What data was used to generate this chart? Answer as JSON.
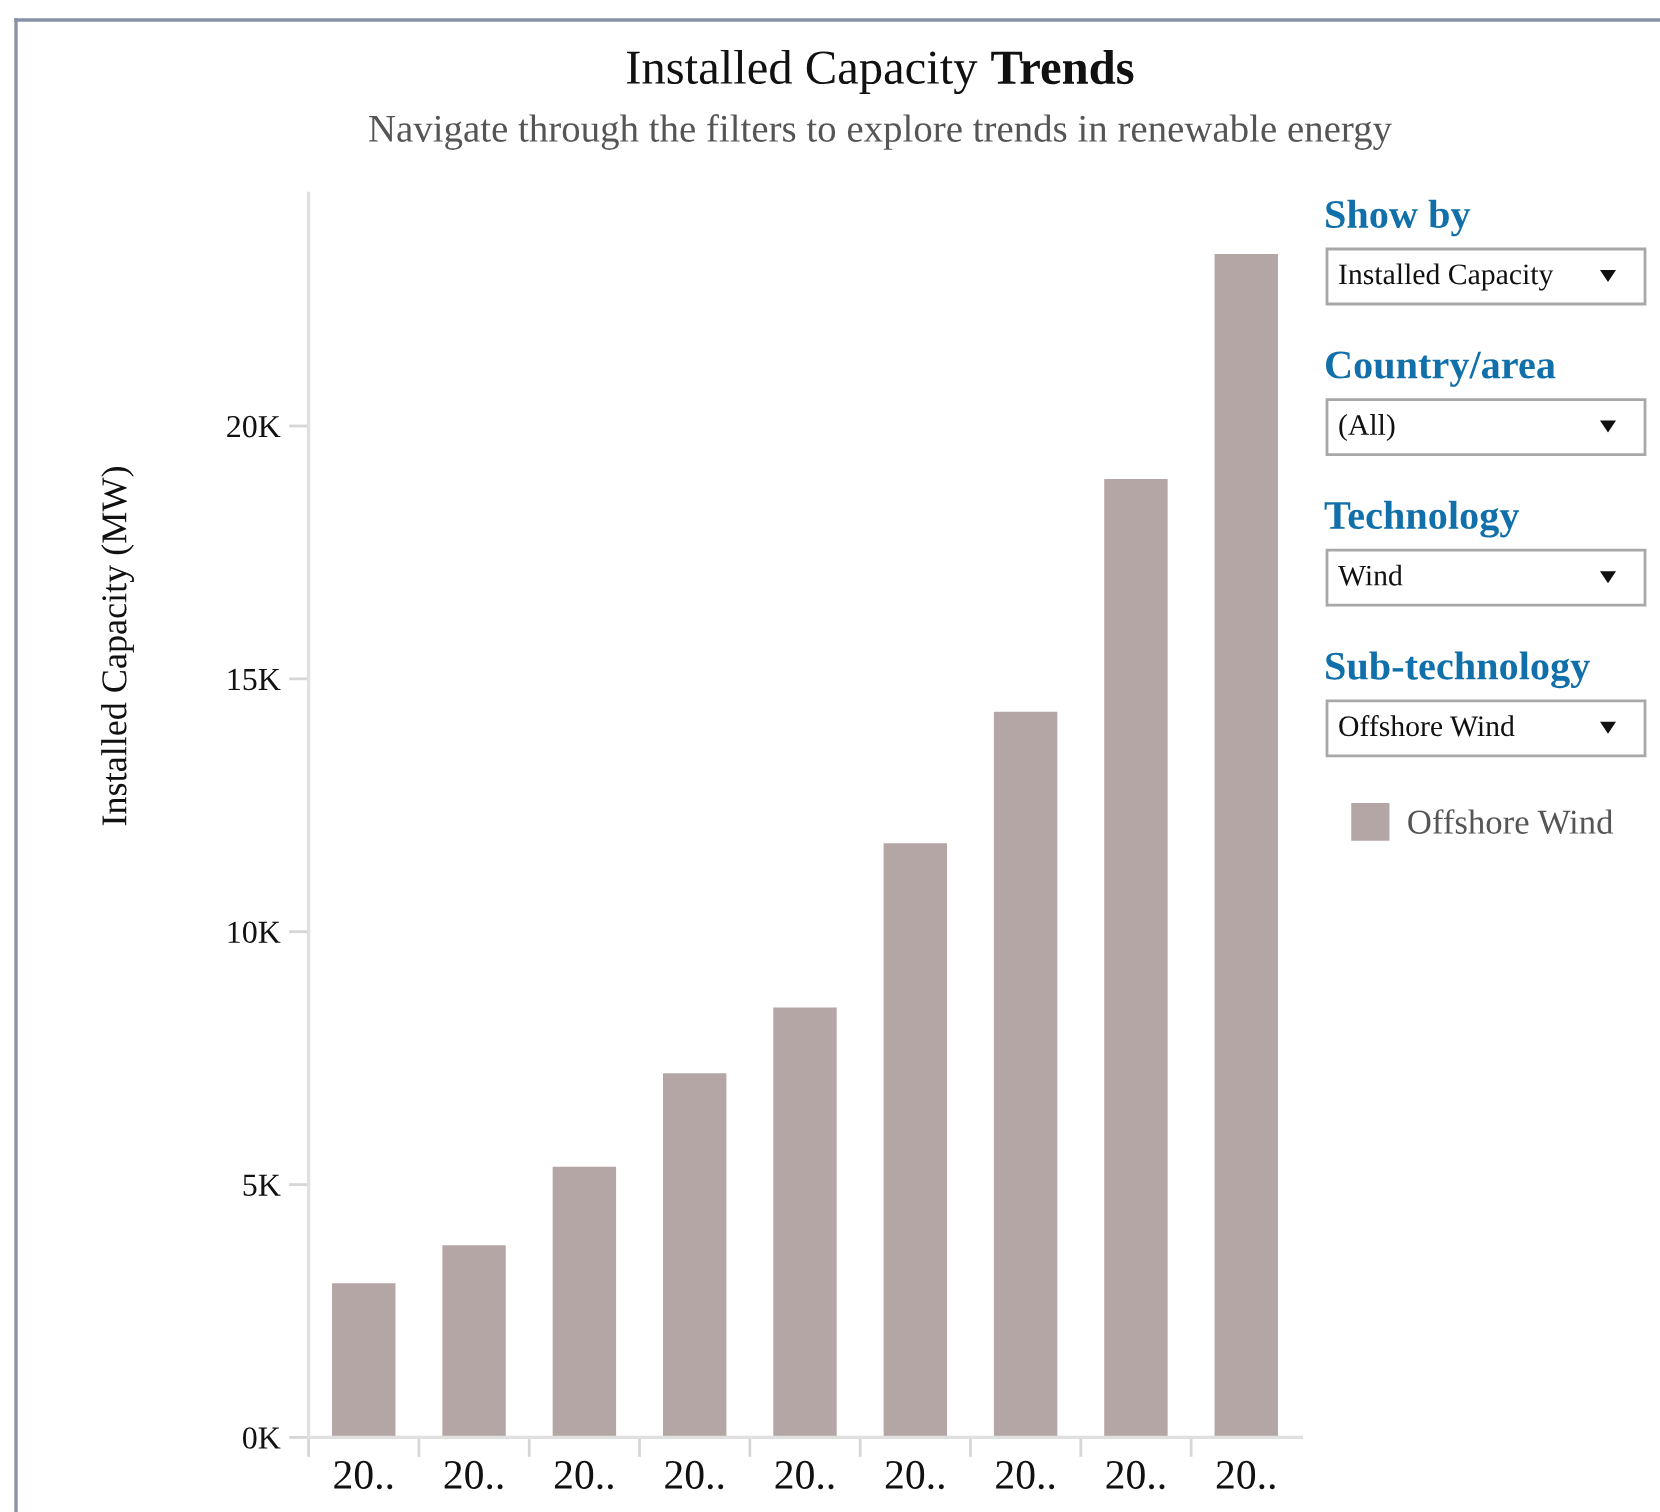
{
  "chart_data": {
    "type": "bar",
    "title": "Installed Capacity Trends",
    "subtitle": "Navigate through the filters to explore trends in renewable energy",
    "ylabel": "Installed Capacity (MW)",
    "categories": [
      "20..",
      "20..",
      "20..",
      "20..",
      "20..",
      "20..",
      "20..",
      "20..",
      "20.."
    ],
    "series": [
      {
        "name": "Offshore Wind",
        "color": "#b3a6a5",
        "values": [
          3050,
          3800,
          5350,
          7200,
          8500,
          11750,
          14350,
          18950,
          23400
        ]
      }
    ],
    "ylim": [
      0,
      24600
    ],
    "yticks": [
      {
        "value": 0,
        "label": "0K"
      },
      {
        "value": 5000,
        "label": "5K"
      },
      {
        "value": 10000,
        "label": "10K"
      },
      {
        "value": 15000,
        "label": "15K"
      },
      {
        "value": 20000,
        "label": "20K"
      }
    ],
    "legend": "right",
    "annotations": [
      "Show by",
      "Installed Capacity",
      "Country/area",
      "(All)",
      "Technology",
      "Wind",
      "Sub-technology",
      "Offshore Wind"
    ]
  }
}
